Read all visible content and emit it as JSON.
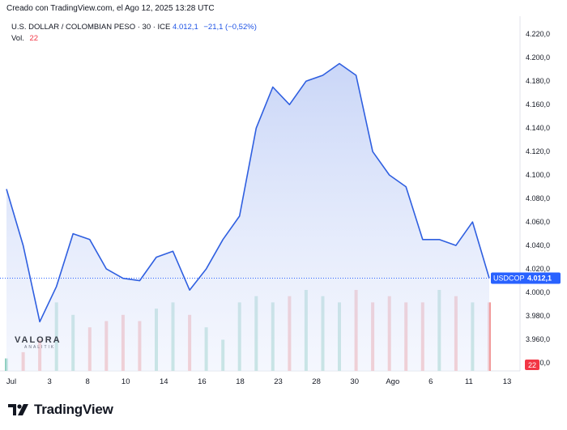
{
  "header": {
    "created": "Creado con TradingView.com, el Ago 12, 2025 13:28 UTC"
  },
  "legend": {
    "symbol": "U.S. DOLLAR / COLOMBIAN PESO · 30 · ICE",
    "value": "4.012,1",
    "change": "−21,1 (−0,52%)",
    "vol_label": "Vol.",
    "vol_value": "22"
  },
  "watermark": {
    "text": "VALORA",
    "sub": "ANALITIK"
  },
  "brand": {
    "text": "TradingView",
    "logo": "tradingview-logo-icon"
  },
  "colors": {
    "line": "#2f5fe0",
    "fill_top": "#c7d4f7",
    "up_volume": "#7cc7b6",
    "down_volume": "#ef8a8a",
    "price_label_bg": "#2962ff",
    "vol_label_bg": "#f23645"
  },
  "chart_data": {
    "type": "area",
    "x": [
      "Jul 1",
      "Jul 2",
      "Jul 3",
      "Jul 7",
      "Jul 8",
      "Jul 9",
      "Jul 10",
      "Jul 11",
      "Jul 14",
      "Jul 15",
      "Jul 16",
      "Jul 17",
      "Jul 18",
      "Jul 21",
      "Jul 22",
      "Jul 23",
      "Jul 24",
      "Jul 25",
      "Jul 28",
      "Jul 29",
      "Jul 30",
      "Jul 31",
      "Ago 1",
      "Ago 4",
      "Ago 5",
      "Ago 6",
      "Ago 7",
      "Ago 8",
      "Ago 11",
      "Ago 12"
    ],
    "series": [
      {
        "values": [
          4088,
          4040,
          3975,
          4005,
          4050,
          4045,
          4020,
          4012,
          4010,
          4030,
          4035,
          4002,
          4020,
          4045,
          4065,
          4140,
          4175,
          4160,
          4180,
          4185,
          4195,
          4185,
          4120,
          4100,
          4090,
          4045,
          4045,
          4040,
          4060,
          4012.1
        ]
      }
    ],
    "volume": [
      4,
      6,
      10,
      22,
      18,
      14,
      16,
      18,
      16,
      20,
      22,
      18,
      14,
      10,
      22,
      24,
      22,
      24,
      26,
      24,
      22,
      26,
      22,
      24,
      22,
      22,
      26,
      24,
      22,
      22
    ],
    "y_axis": {
      "ticks": [
        "4.220,0",
        "4.200,0",
        "4.180,0",
        "4.160,0",
        "4.140,0",
        "4.120,0",
        "4.100,0",
        "4.080,0",
        "4.060,0",
        "4.040,0",
        "4.020,0",
        "4.000,0",
        "3.980,0",
        "3.960,0",
        "3.940,0"
      ],
      "ylim": [
        3940,
        4225
      ]
    },
    "x_axis": {
      "ticks": [
        "Jul",
        "3",
        "8",
        "10",
        "14",
        "16",
        "18",
        "23",
        "28",
        "30",
        "Ago",
        "6",
        "11",
        "13"
      ]
    },
    "last_price": {
      "symbol": "USDCOP",
      "value": "4.012,1"
    },
    "volume_label": "22",
    "grid": false
  }
}
